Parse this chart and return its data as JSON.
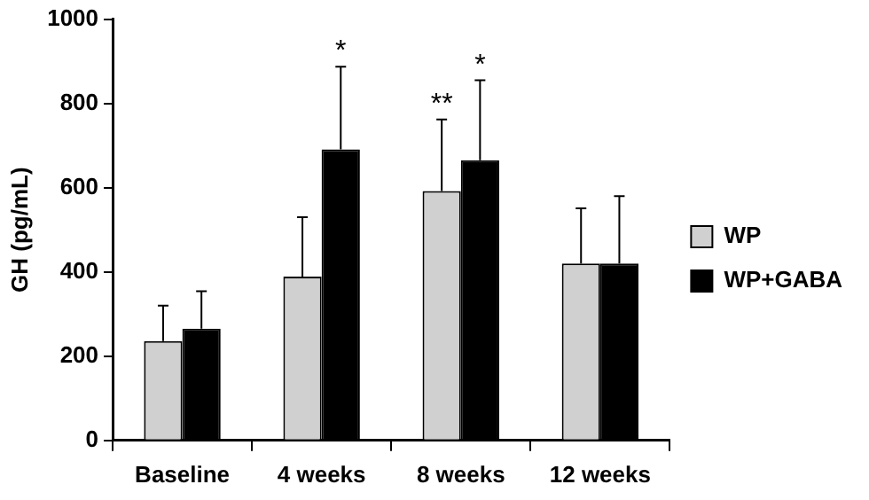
{
  "chart_data": {
    "type": "bar",
    "ylabel": "GH (pg/mL)",
    "categories": [
      "Baseline",
      "4 weeks",
      "8 weeks",
      "12 weeks"
    ],
    "series": [
      {
        "name": "WP",
        "color": "#d0d0d0",
        "values": [
          236,
          389,
          592,
          420
        ],
        "errors": [
          [
            236,
            320
          ],
          [
            389,
            530
          ],
          [
            592,
            762
          ],
          [
            420,
            551
          ]
        ]
      },
      {
        "name": "WP+GABA",
        "color": "#000000",
        "values": [
          265,
          691,
          665,
          420
        ],
        "errors": [
          [
            265,
            354
          ],
          [
            691,
            887
          ],
          [
            665,
            855
          ],
          [
            420,
            580
          ]
        ]
      }
    ],
    "ylim": [
      0,
      1000
    ],
    "yticks": [
      0,
      200,
      400,
      600,
      800,
      1000
    ],
    "grid": false,
    "legend": "right",
    "annotations": [
      {
        "text": "*",
        "x": "4 weeks",
        "y": 691
      },
      {
        "text": "**",
        "x": "8 weeks",
        "y": 592
      },
      {
        "text": "*",
        "x": "8 weeks",
        "y": 665
      }
    ]
  }
}
